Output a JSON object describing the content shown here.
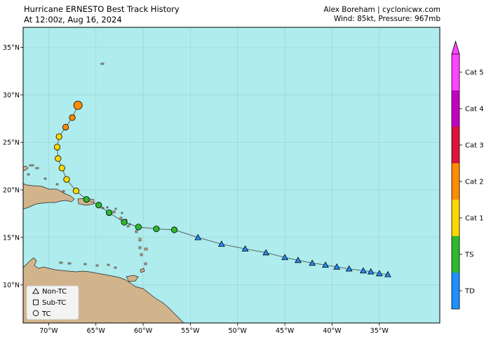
{
  "header": {
    "title": "Hurricane ERNESTO Best Track History",
    "subtitle": "At 12:00z, Aug 16, 2024",
    "credit": "Alex Boreham | cyclonicwx.com",
    "status": "Wind: 85kt, Pressure: 967mb"
  },
  "map": {
    "lon_range": [
      -72.7,
      -28.6
    ],
    "lat_range": [
      6.0,
      37.1
    ],
    "lon_ticks": [
      {
        "value": -70,
        "label": "70°W"
      },
      {
        "value": -65,
        "label": "65°W"
      },
      {
        "value": -60,
        "label": "60°W"
      },
      {
        "value": -55,
        "label": "55°W"
      },
      {
        "value": -50,
        "label": "50°W"
      },
      {
        "value": -45,
        "label": "45°W"
      },
      {
        "value": -40,
        "label": "40°W"
      },
      {
        "value": -35,
        "label": "35°W"
      }
    ],
    "lat_ticks": [
      {
        "value": 10,
        "label": "10°N"
      },
      {
        "value": 15,
        "label": "15°N"
      },
      {
        "value": 20,
        "label": "20°N"
      },
      {
        "value": 25,
        "label": "25°N"
      },
      {
        "value": 30,
        "label": "30°N"
      },
      {
        "value": 35,
        "label": "35°N"
      }
    ],
    "colors": {
      "ocean": "#aeeced",
      "land": "#d2b48c",
      "grid": "#9fcfd0",
      "track": "#555555"
    }
  },
  "track": [
    {
      "lon": -34.1,
      "lat": 11.1,
      "type": "Non-TC",
      "cat": "TD"
    },
    {
      "lon": -35.0,
      "lat": 11.2,
      "type": "Non-TC",
      "cat": "TD"
    },
    {
      "lon": -35.9,
      "lat": 11.4,
      "type": "Non-TC",
      "cat": "TD"
    },
    {
      "lon": -36.7,
      "lat": 11.5,
      "type": "Non-TC",
      "cat": "TD"
    },
    {
      "lon": -38.2,
      "lat": 11.7,
      "type": "Non-TC",
      "cat": "TD"
    },
    {
      "lon": -39.5,
      "lat": 11.9,
      "type": "Non-TC",
      "cat": "TD"
    },
    {
      "lon": -40.7,
      "lat": 12.1,
      "type": "Non-TC",
      "cat": "TD"
    },
    {
      "lon": -42.1,
      "lat": 12.3,
      "type": "Non-TC",
      "cat": "TD"
    },
    {
      "lon": -43.6,
      "lat": 12.6,
      "type": "Non-TC",
      "cat": "TD"
    },
    {
      "lon": -45.0,
      "lat": 12.9,
      "type": "Non-TC",
      "cat": "TD"
    },
    {
      "lon": -47.0,
      "lat": 13.4,
      "type": "Non-TC",
      "cat": "TD"
    },
    {
      "lon": -49.2,
      "lat": 13.8,
      "type": "Non-TC",
      "cat": "TD"
    },
    {
      "lon": -51.7,
      "lat": 14.3,
      "type": "Non-TC",
      "cat": "TD"
    },
    {
      "lon": -54.2,
      "lat": 15.0,
      "type": "Non-TC",
      "cat": "TD"
    },
    {
      "lon": -56.7,
      "lat": 15.8,
      "type": "TC",
      "cat": "TS"
    },
    {
      "lon": -58.6,
      "lat": 15.9,
      "type": "TC",
      "cat": "TS"
    },
    {
      "lon": -60.5,
      "lat": 16.1,
      "type": "TC",
      "cat": "TS"
    },
    {
      "lon": -62.0,
      "lat": 16.6,
      "type": "TC",
      "cat": "TS"
    },
    {
      "lon": -63.6,
      "lat": 17.6,
      "type": "TC",
      "cat": "TS"
    },
    {
      "lon": -64.7,
      "lat": 18.4,
      "type": "TC",
      "cat": "TS"
    },
    {
      "lon": -66.0,
      "lat": 19.0,
      "type": "TC",
      "cat": "TS"
    },
    {
      "lon": -67.1,
      "lat": 19.9,
      "type": "TC",
      "cat": "Cat 1"
    },
    {
      "lon": -68.1,
      "lat": 21.1,
      "type": "TC",
      "cat": "Cat 1"
    },
    {
      "lon": -68.6,
      "lat": 22.3,
      "type": "TC",
      "cat": "Cat 1"
    },
    {
      "lon": -69.0,
      "lat": 23.3,
      "type": "TC",
      "cat": "Cat 1"
    },
    {
      "lon": -69.1,
      "lat": 24.5,
      "type": "TC",
      "cat": "Cat 1"
    },
    {
      "lon": -68.9,
      "lat": 25.6,
      "type": "TC",
      "cat": "Cat 1"
    },
    {
      "lon": -68.2,
      "lat": 26.6,
      "type": "TC",
      "cat": "Cat 2"
    },
    {
      "lon": -67.5,
      "lat": 27.6,
      "type": "TC",
      "cat": "Cat 2"
    },
    {
      "lon": -66.9,
      "lat": 28.9,
      "type": "TC",
      "cat": "Cat 2",
      "current": true
    }
  ],
  "colorbar": {
    "categories": [
      {
        "label": "TD",
        "color": "#1e90ff"
      },
      {
        "label": "TS",
        "color": "#2db82d"
      },
      {
        "label": "Cat 1",
        "color": "#ffd700"
      },
      {
        "label": "Cat 2",
        "color": "#ff8c00"
      },
      {
        "label": "Cat 3",
        "color": "#dc143c"
      },
      {
        "label": "Cat 4",
        "color": "#c400c4"
      },
      {
        "label": "Cat 5",
        "color": "#ff44ff"
      }
    ]
  },
  "legend": {
    "items": [
      {
        "label": "Non-TC",
        "shape": "triangle"
      },
      {
        "label": "Sub-TC",
        "shape": "square"
      },
      {
        "label": "TC",
        "shape": "circle"
      }
    ]
  }
}
